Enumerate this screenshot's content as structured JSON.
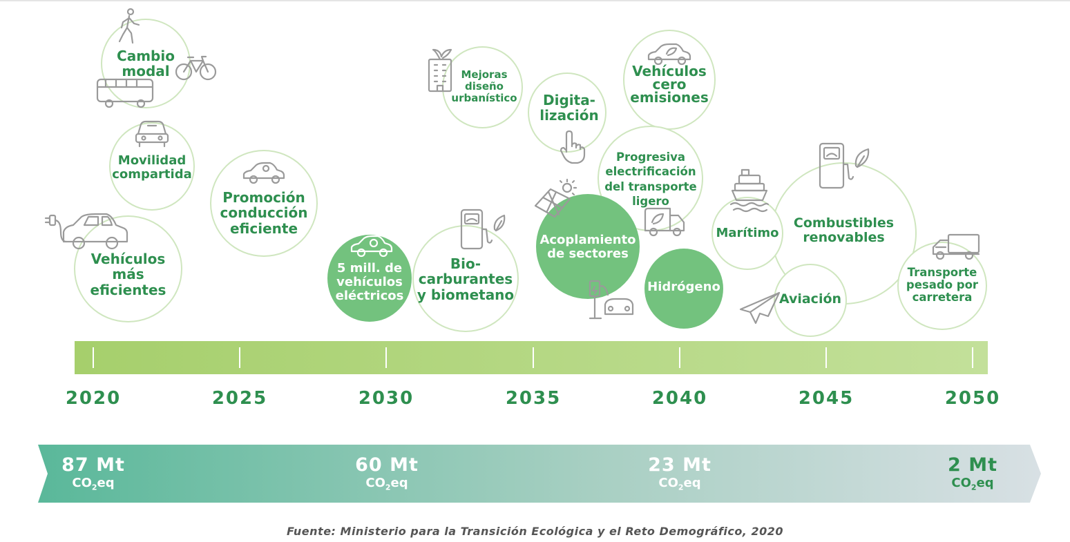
{
  "bubbles": {
    "cambio_modal": "Cambio\nmodal",
    "movilidad_compartida": "Movilidad\ncompartida",
    "vehiculos_eficientes": "Vehículos\nmás\neficientes",
    "promocion_conduccion": "Promoción\nconducción\neficiente",
    "cinco_millones": "5 mill. de\nvehículos\neléctricos",
    "biocarburantes": "Bio-\ncarburantes\ny biometano",
    "mejoras_diseno": "Mejoras\ndiseño\nurbanístico",
    "digitalizacion": "Digita-\nlización",
    "acoplamiento": "Acoplamiento\nde sectores",
    "vehiculos_cero": "Vehículos\ncero\nemisiones",
    "progresiva": "Progresiva\nelectrificación\ndel transporte\nligero",
    "hidrogeno": "Hidrógeno",
    "maritimo": "Marítimo",
    "combustibles": "Combustibles\nrenovables",
    "aviacion": "Aviación",
    "transporte_pesado": "Transporte\npesado por\ncarretera"
  },
  "timeline": {
    "years": [
      "2020",
      "2025",
      "2030",
      "2035",
      "2040",
      "2045",
      "2050"
    ]
  },
  "emissions": [
    {
      "value": "87 Mt",
      "unit_pre": "CO",
      "unit_sub": "2",
      "unit_post": "eq"
    },
    {
      "value": "60 Mt",
      "unit_pre": "CO",
      "unit_sub": "2",
      "unit_post": "eq"
    },
    {
      "value": "23 Mt",
      "unit_pre": "CO",
      "unit_sub": "2",
      "unit_post": "eq"
    },
    {
      "value": "2 Mt",
      "unit_pre": "CO",
      "unit_sub": "2",
      "unit_post": "eq"
    }
  ],
  "source": "Fuente:  Ministerio para la Transición Ecológica y el Reto Demográfico, 2020",
  "colors": {
    "primary_green": "#2e8f4f",
    "bubble_fill": "#73c27e",
    "bubble_outline": "#cfe6bf",
    "timeline_start": "#a6cf6c",
    "timeline_end": "#c3e09a",
    "arrow_start": "#5ab89a",
    "arrow_end": "#d4dde2"
  }
}
